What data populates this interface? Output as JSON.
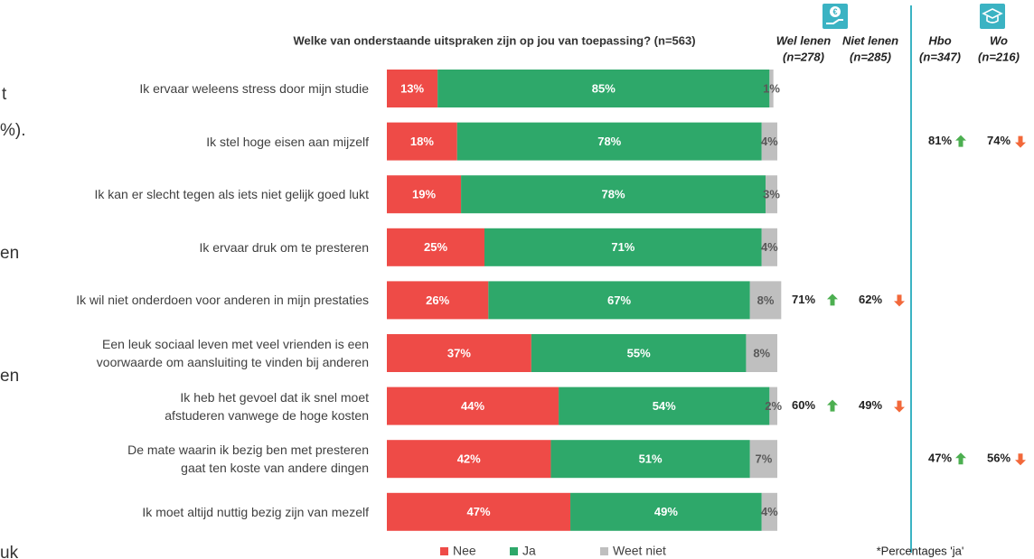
{
  "fragments": [
    "t",
    "%).",
    "en",
    "en",
    "uk"
  ],
  "chart_data": {
    "type": "bar",
    "orientation": "horizontal",
    "stacked": true,
    "title": "Welke van onderstaande uitspraken zijn op jou van toepassing? (n=563)",
    "categories": [
      "Ik ervaar weleens stress door mijn studie",
      "Ik stel hoge eisen aan mijzelf",
      "Ik kan er slecht tegen als iets niet gelijk goed lukt",
      "Ik ervaar druk om te presteren",
      "Ik wil niet onderdoen voor anderen in mijn prestaties",
      "Een leuk sociaal leven met veel vrienden is een\nvoorwaarde om aansluiting te vinden bij anderen",
      "Ik heb het gevoel dat ik snel moet\nafstuderen vanwege de hoge kosten",
      "De mate waarin ik bezig ben met presteren\ngaat ten koste van andere dingen",
      "Ik moet altijd nuttig bezig zijn van mezelf"
    ],
    "xlim": [
      0,
      100
    ],
    "legend": "bottom",
    "series": [
      {
        "name": "Nee",
        "color": "#ee4b47",
        "label_color": "#ffffff",
        "values": [
          13,
          18,
          19,
          25,
          26,
          37,
          44,
          42,
          47
        ],
        "value_labels": [
          "13%",
          "18%",
          "19%",
          "25%",
          "26%",
          "37%",
          "44%",
          "42%",
          "47%"
        ]
      },
      {
        "name": "Ja",
        "color": "#2ea86a",
        "label_color": "#ffffff",
        "values": [
          85,
          78,
          78,
          71,
          67,
          55,
          54,
          51,
          49
        ],
        "value_labels": [
          "85%",
          "78%",
          "78%",
          "71%",
          "67%",
          "55%",
          "54%",
          "51%",
          "49%"
        ]
      },
      {
        "name": "Weet niet",
        "color": "#bfbfbf",
        "label_color": "#595959",
        "values": [
          1,
          4,
          3,
          4,
          8,
          8,
          2,
          7,
          4
        ],
        "value_labels": [
          "1%",
          "4%",
          "3%",
          "4%",
          "8%",
          "8%",
          "2%",
          "7%",
          "4%"
        ]
      }
    ],
    "subgroups": [
      {
        "name": "Wel lenen",
        "n": "(n=278)",
        "trend": "up",
        "values": [
          null,
          null,
          null,
          null,
          71,
          null,
          60,
          null,
          null
        ],
        "value_labels": [
          null,
          null,
          null,
          null,
          "71%",
          null,
          "60%",
          null,
          null
        ]
      },
      {
        "name": "Niet lenen",
        "n": "(n=285)",
        "trend": "down",
        "values": [
          null,
          null,
          null,
          null,
          62,
          null,
          49,
          null,
          null
        ],
        "value_labels": [
          null,
          null,
          null,
          null,
          "62%",
          null,
          "49%",
          null,
          null
        ]
      },
      {
        "name": "Hbo",
        "n": "(n=347)",
        "trend": "up",
        "values": [
          null,
          81,
          null,
          null,
          null,
          null,
          null,
          47,
          null
        ],
        "value_labels": [
          null,
          "81%",
          null,
          null,
          null,
          null,
          null,
          "47%",
          null
        ]
      },
      {
        "name": "Wo",
        "n": "(n=216)",
        "trend": "down",
        "values": [
          null,
          74,
          null,
          null,
          null,
          null,
          null,
          56,
          null
        ],
        "value_labels": [
          null,
          "74%",
          null,
          null,
          null,
          null,
          null,
          "56%",
          null
        ]
      }
    ],
    "note": "*Percentages 'ja'"
  }
}
